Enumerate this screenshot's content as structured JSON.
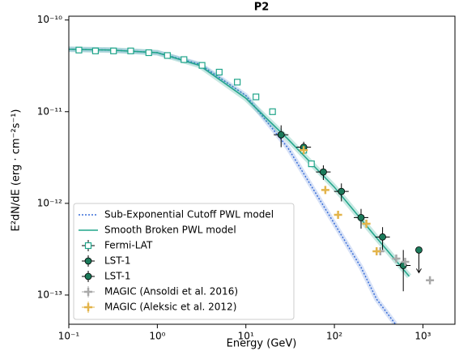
{
  "chart_data": {
    "type": "scatter",
    "title": "P2",
    "xlabel": "Energy (GeV)",
    "ylabel": "E²dN/dE (erg · cm⁻²s⁻¹)",
    "xscale": "log",
    "yscale": "log",
    "xlim": [
      0.1,
      2300
    ],
    "ylim": [
      4.8e-14,
      1.1e-10
    ],
    "xticks": [
      {
        "value": 0.1,
        "label": "10⁻¹"
      },
      {
        "value": 1,
        "label": "10⁰"
      },
      {
        "value": 10,
        "label": "10¹"
      },
      {
        "value": 100,
        "label": "10²"
      },
      {
        "value": 1000,
        "label": "10³"
      }
    ],
    "yticks": [
      {
        "value": 1e-13,
        "label": "10⁻¹³"
      },
      {
        "value": 1e-12,
        "label": "10⁻¹²"
      },
      {
        "value": 1e-11,
        "label": "10⁻¹¹"
      },
      {
        "value": 1e-10,
        "label": "10⁻¹⁰"
      }
    ],
    "legend": "lower left",
    "series": [
      {
        "name": "Sub-Exponential Cutoff PWL model",
        "style": "dotted",
        "color": "#3a6fd8",
        "x": [
          0.1,
          0.3,
          1,
          3,
          10,
          30,
          100,
          200,
          300,
          490
        ],
        "values": [
          4.8e-11,
          4.7e-11,
          4.4e-11,
          3.3e-11,
          1.5e-11,
          4e-12,
          6e-13,
          2e-13,
          9e-14,
          4.8e-14
        ]
      },
      {
        "name": "Smooth Broken PWL model",
        "style": "line",
        "color": "#20a58a",
        "x": [
          0.1,
          0.3,
          1,
          3,
          10,
          30,
          100,
          300,
          700
        ],
        "values": [
          4.8e-11,
          4.7e-11,
          4.4e-11,
          3.2e-11,
          1.4e-11,
          5e-12,
          1.5e-12,
          4.2e-13,
          1.6e-13
        ]
      },
      {
        "name": "Fermi-LAT",
        "style": "open-square",
        "color": "#20a58a",
        "x": [
          0.13,
          0.2,
          0.32,
          0.5,
          0.8,
          1.3,
          2,
          3.2,
          5,
          8,
          13,
          20,
          45,
          55
        ],
        "values": [
          4.7e-11,
          4.6e-11,
          4.6e-11,
          4.6e-11,
          4.4e-11,
          4.1e-11,
          3.7e-11,
          3.2e-11,
          2.7e-11,
          2.1e-11,
          1.45e-11,
          1e-11,
          3.8e-12,
          2.7e-12
        ]
      },
      {
        "name": "LST-1",
        "style": "circle",
        "color": "#1b7a5a",
        "x": [
          25,
          45,
          75,
          120,
          200,
          350,
          600
        ],
        "values": [
          5.6e-12,
          4.1e-12,
          2.2e-12,
          1.35e-12,
          7e-13,
          4.3e-13,
          2.1e-13
        ],
        "yerr": [
          1.5e-12,
          6e-13,
          4e-13,
          3e-13,
          1.7e-13,
          1.2e-13,
          1e-13
        ]
      },
      {
        "name": "LST-1",
        "style": "circle-limit",
        "color": "#1b7a5a",
        "x": [
          900
        ],
        "values": [
          3.1e-13
        ]
      },
      {
        "name": "MAGIC (Ansoldi et al. 2016)",
        "style": "star",
        "color": "#a9a9a9",
        "x": [
          330,
          500,
          630,
          1200
        ],
        "values": [
          3e-13,
          2.5e-13,
          2.3e-13,
          1.45e-13
        ]
      },
      {
        "name": "MAGIC (Aleksic et al. 2012)",
        "style": "star",
        "color": "#e3b44a",
        "x": [
          45,
          79,
          110,
          230,
          300
        ],
        "values": [
          3.8e-12,
          1.4e-12,
          7.5e-13,
          6e-13,
          3e-13
        ]
      }
    ]
  }
}
